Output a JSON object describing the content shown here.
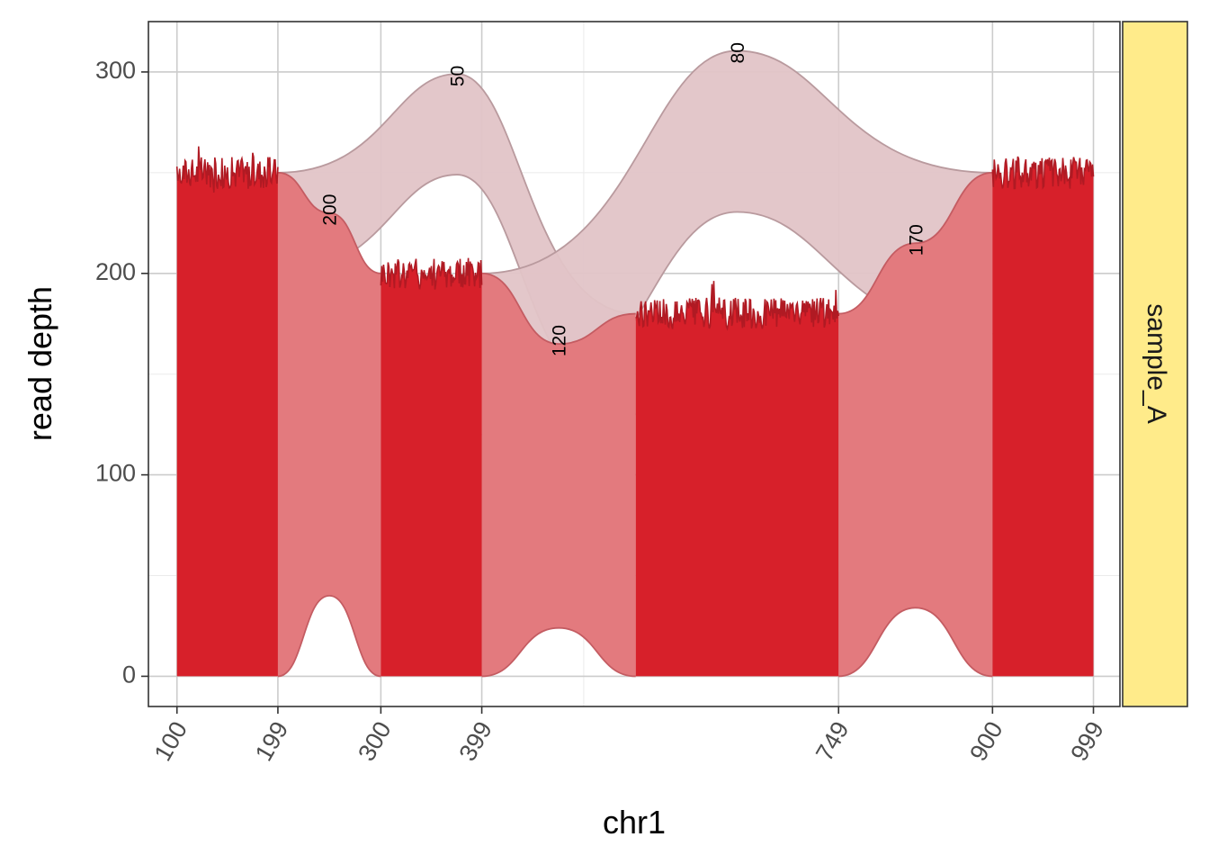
{
  "chart_data": {
    "type": "area",
    "chromosome": "chr1",
    "xlabel": "chr1",
    "ylabel": "read depth",
    "facet_label": "sample_A",
    "xlim": [
      72,
      1025
    ],
    "ylim": [
      -15,
      325
    ],
    "x_ticks": [
      100,
      199,
      300,
      399,
      749,
      900,
      999
    ],
    "x_minor_ticks": [
      499
    ],
    "y_ticks": [
      0,
      100,
      200,
      300
    ],
    "y_minor_ticks": [
      50,
      150,
      250
    ],
    "grid": true,
    "coverage": [
      {
        "start": 100,
        "end": 199,
        "depth": 250
      },
      {
        "start": 300,
        "end": 399,
        "depth": 200
      },
      {
        "start": 550,
        "end": 749,
        "depth": 180
      },
      {
        "start": 900,
        "end": 999,
        "depth": 250
      }
    ],
    "junctions": [
      {
        "from": 199,
        "to": 300,
        "count": 200,
        "label": "200",
        "side": "lower"
      },
      {
        "from": 399,
        "to": 550,
        "count": 120,
        "label": "120",
        "side": "lower"
      },
      {
        "from": 749,
        "to": 900,
        "count": 170,
        "label": "170",
        "side": "lower"
      },
      {
        "from": 199,
        "to": 550,
        "count": 50,
        "label": "50",
        "side": "upper"
      },
      {
        "from": 399,
        "to": 900,
        "count": 80,
        "label": "80",
        "side": "upper"
      }
    ],
    "colors": {
      "coverage": "#d7202a",
      "coverage_noise": "#b01a23",
      "lower_junction_fill": "#e37a7e",
      "lower_junction_stroke": "#c45c62",
      "upper_junction_fill": "#e2c4c7",
      "upper_junction_stroke": "#b99a9e",
      "strip_fill": "#ffeb8a",
      "grid_major": "#cccccc",
      "grid_minor": "#ebebeb",
      "panel_border": "#333333"
    }
  }
}
